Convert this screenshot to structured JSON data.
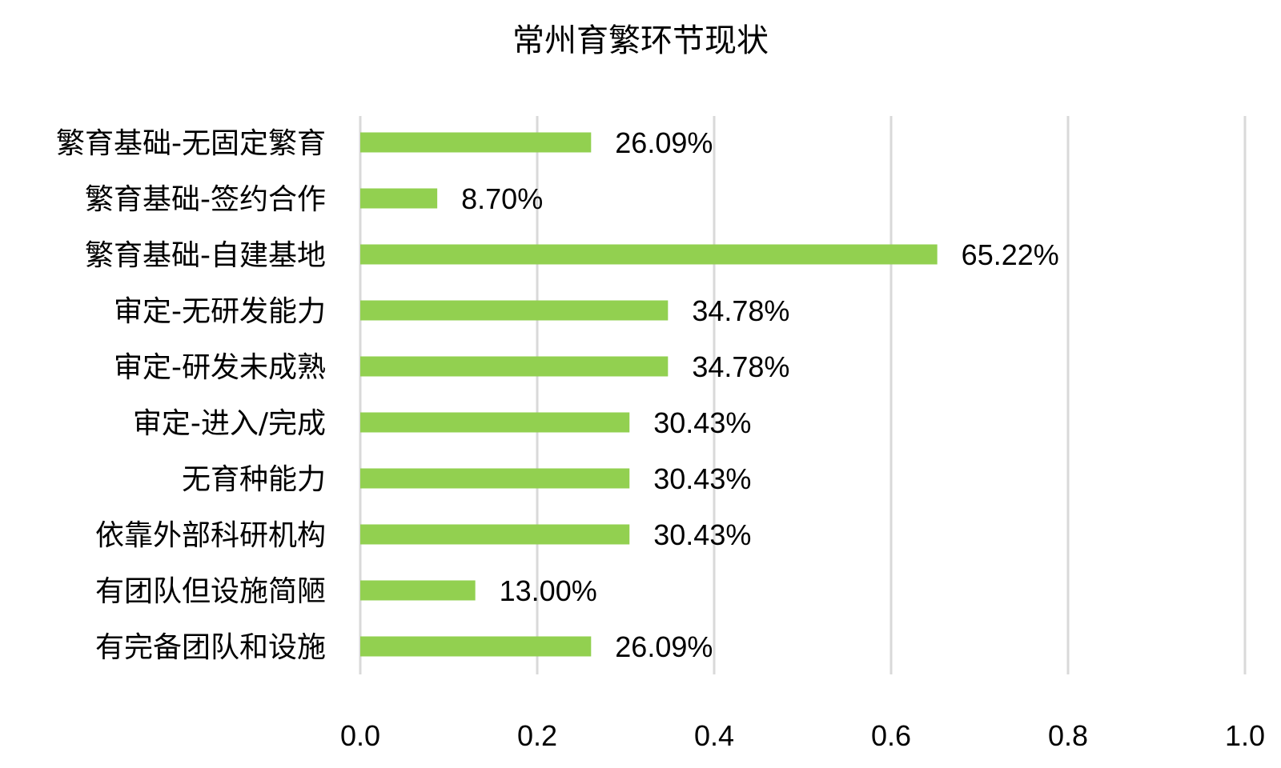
{
  "chart_data": {
    "type": "bar",
    "orientation": "horizontal",
    "title": "常州育繁环节现状",
    "categories": [
      "繁育基础-无固定繁育",
      "繁育基础-签约合作",
      "繁育基础-自建基地",
      "审定-无研发能力",
      "审定-研发未成熟",
      "审定-进入/完成",
      "无育种能力",
      "依靠外部科研机构",
      "有团队但设施简陋",
      "有完备团队和设施"
    ],
    "values": [
      0.2609,
      0.087,
      0.6522,
      0.3478,
      0.3478,
      0.3043,
      0.3043,
      0.3043,
      0.13,
      0.2609
    ],
    "data_labels": [
      "26.09%",
      "8.70%",
      "65.22%",
      "34.78%",
      "34.78%",
      "30.43%",
      "30.43%",
      "30.43%",
      "13.00%",
      "26.09%"
    ],
    "x_ticks": [
      "0.0",
      "0.2",
      "0.4",
      "0.6",
      "0.8",
      "1.0"
    ],
    "xlim": [
      0,
      1
    ],
    "grid": true,
    "legend": "none",
    "bar_color": "#92d050",
    "grid_color": "#d9d9d9"
  }
}
